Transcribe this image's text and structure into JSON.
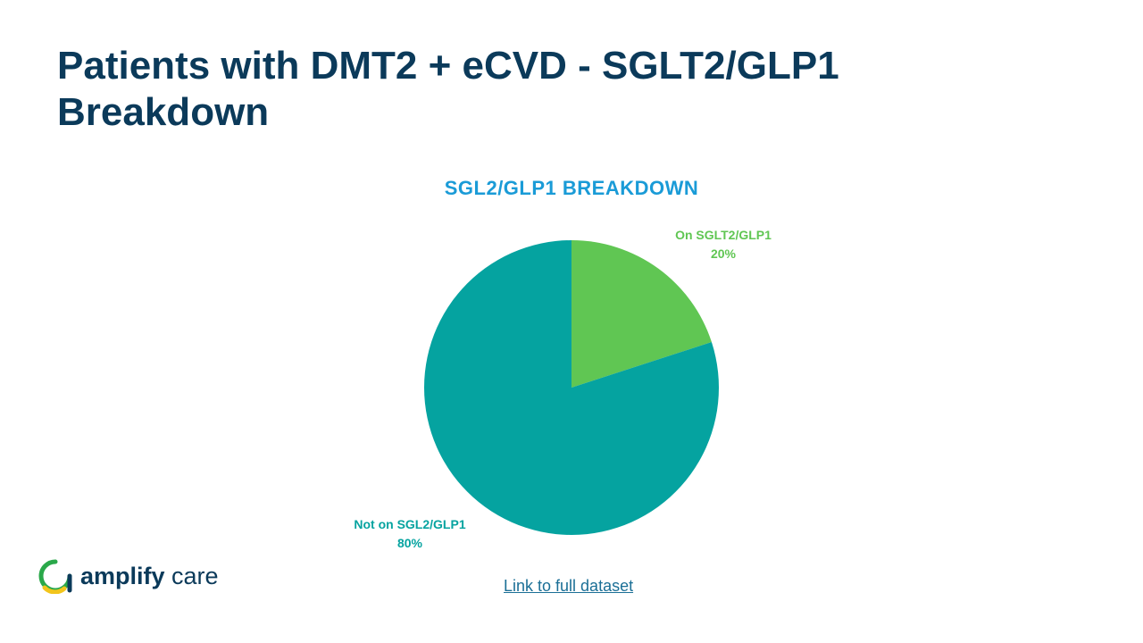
{
  "slide": {
    "title": "Patients with DMT2 + eCVD - SGLT2/GLP1 Breakdown"
  },
  "chart_data": {
    "type": "pie",
    "title": "SGL2/GLP1 BREAKDOWN",
    "slices": [
      {
        "label": "On SGLT2/GLP1",
        "value": 20,
        "value_label": "20%",
        "color": "#60c653"
      },
      {
        "label": "Not on SGL2/GLP1",
        "value": 80,
        "value_label": "80%",
        "color": "#05a3a0"
      }
    ],
    "start_angle": "12 o'clock",
    "direction": "clockwise",
    "legend": "none (data labels outside slices)"
  },
  "footer": {
    "link_label": "Link to full dataset"
  },
  "logo": {
    "text_bold": "amplify",
    "text_light": " care",
    "icon": "amplify-care-logo-icon",
    "colors": {
      "green": "#2aa84a",
      "yellow": "#f2c51c",
      "navy": "#0b3a5a"
    }
  }
}
